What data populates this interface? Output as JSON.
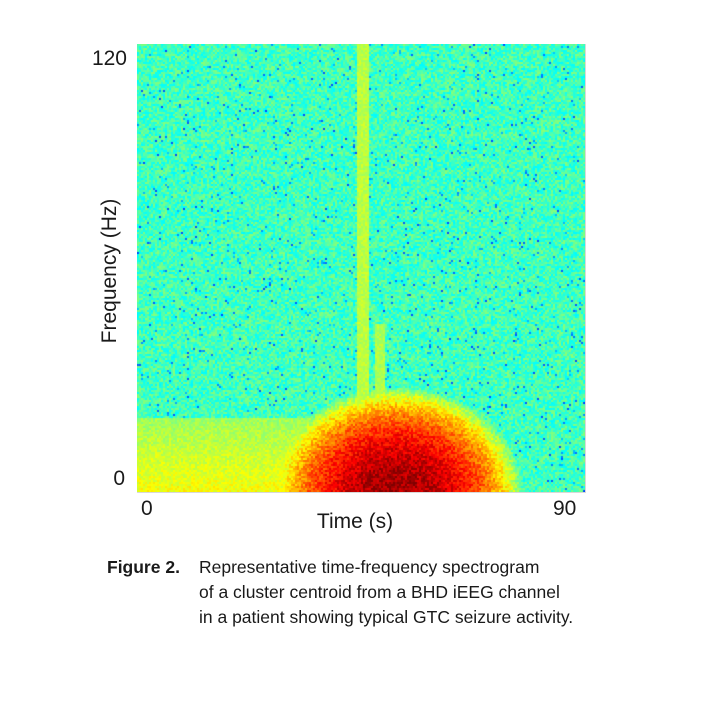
{
  "chart_data": {
    "type": "heatmap",
    "title": "",
    "xlabel": "Time (s)",
    "ylabel": "Frequency (Hz)",
    "xlim": [
      0,
      90
    ],
    "ylim": [
      0,
      120
    ],
    "x_ticks": [
      "0",
      "90"
    ],
    "y_ticks": [
      "0",
      "120"
    ],
    "colormap": "jet",
    "colorbar": false,
    "grid": false,
    "description_of_values": "relative spectral power",
    "background_level": 0.44,
    "features": [
      {
        "kind": "seizure-burst",
        "t_start": 35,
        "t_end": 75,
        "t_peak": 52,
        "f_max": 22,
        "peak_intensity": 0.97
      },
      {
        "kind": "low-frequency-band",
        "t_start": 0,
        "t_end": 35,
        "f_max": 20,
        "intensity": 0.62
      },
      {
        "kind": "vertical-streak",
        "t_start": 44,
        "t_end": 46.5,
        "f_min": 0,
        "f_max": 120,
        "intensity": 0.56
      },
      {
        "kind": "vertical-streak",
        "t_start": 48,
        "t_end": 50,
        "f_min": 0,
        "f_max": 45,
        "intensity": 0.55
      }
    ]
  },
  "caption": {
    "label": "Figure 2.",
    "lines": [
      "Representative time-frequency spectrogram",
      "of a cluster centroid from a BHD iEEG channel",
      "in a patient showing typical GTC seizure activity."
    ]
  }
}
